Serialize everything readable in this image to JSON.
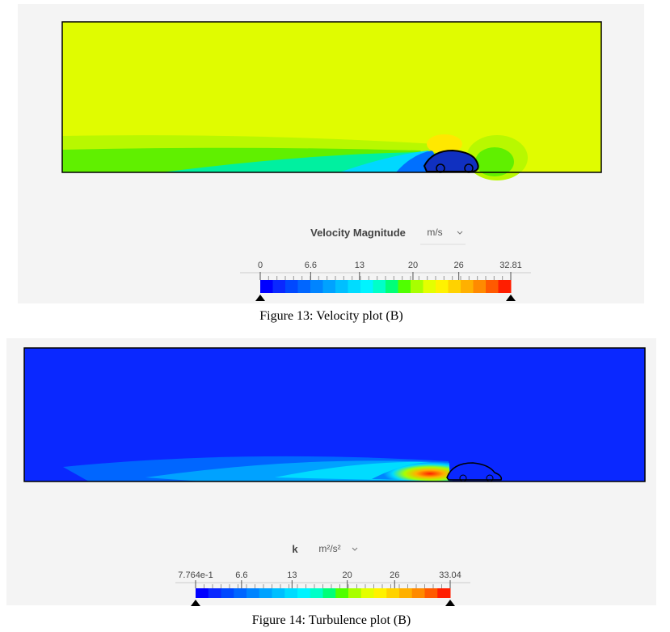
{
  "colormap": [
    "#0000ff",
    "#0a28ff",
    "#0048ff",
    "#0066ff",
    "#0084ff",
    "#00a2ff",
    "#00bfff",
    "#00dcff",
    "#00f4ff",
    "#00ffc8",
    "#00ff78",
    "#50ff00",
    "#a8ff00",
    "#e4ff00",
    "#fff200",
    "#ffd200",
    "#ffb000",
    "#ff8a00",
    "#ff5a00",
    "#ff1e00"
  ],
  "figures": [
    {
      "field": "Velocity Magnitude",
      "unit": "m/s",
      "range": [
        0,
        32.81
      ],
      "ticks": [
        0,
        6.6,
        13,
        20,
        26,
        32.81
      ],
      "caption": "Figure 13: Velocity plot (B)"
    },
    {
      "field": "k",
      "unit": "m²/s²",
      "range": [
        0.7764,
        33.04
      ],
      "ticks": [
        {
          "value": 0.7764,
          "label": "7.764e-1"
        },
        6.6,
        13,
        20,
        26,
        33.04
      ],
      "caption": "Figure 14: Turbulence plot (B)"
    }
  ]
}
